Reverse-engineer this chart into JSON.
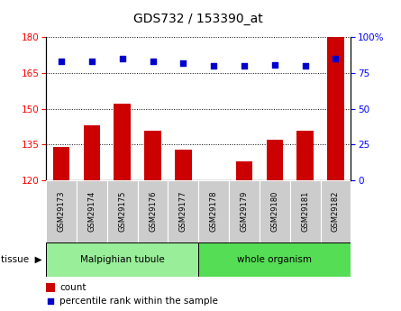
{
  "title": "GDS732 / 153390_at",
  "categories": [
    "GSM29173",
    "GSM29174",
    "GSM29175",
    "GSM29176",
    "GSM29177",
    "GSM29178",
    "GSM29179",
    "GSM29180",
    "GSM29181",
    "GSM29182"
  ],
  "bar_values": [
    134,
    143,
    152,
    141,
    133,
    120,
    128,
    137,
    141,
    180
  ],
  "bar_baseline": 120,
  "percentile_values": [
    83,
    83,
    85,
    83,
    82,
    80,
    80,
    81,
    80,
    85
  ],
  "bar_color": "#cc0000",
  "dot_color": "#0000cc",
  "ylim_left": [
    120,
    180
  ],
  "ylim_right": [
    0,
    100
  ],
  "yticks_left": [
    120,
    135,
    150,
    165,
    180
  ],
  "yticks_right": [
    0,
    25,
    50,
    75,
    100
  ],
  "groups": [
    {
      "label": "Malpighian tubule",
      "start": 0,
      "end": 5,
      "color": "#99ee99"
    },
    {
      "label": "whole organism",
      "start": 5,
      "end": 10,
      "color": "#55dd55"
    }
  ],
  "tissue_label": "tissue",
  "legend_bar_label": "count",
  "legend_dot_label": "percentile rank within the sample",
  "xticklabel_bg": "#cccccc"
}
